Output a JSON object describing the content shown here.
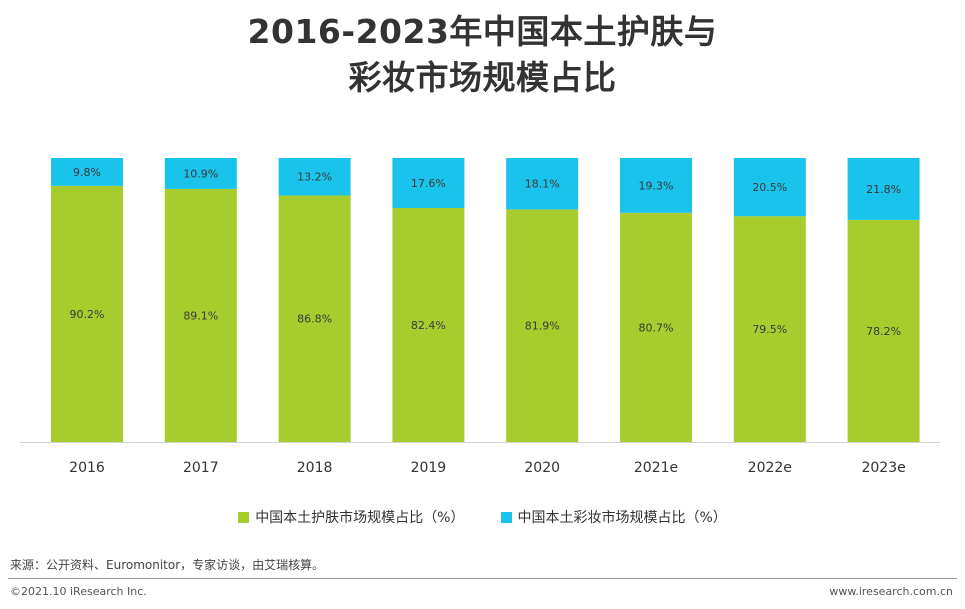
{
  "title_line1": "2016-2023年中国本土护肤与",
  "title_line2": "彩妆市场规模占比",
  "chart_data": {
    "type": "bar",
    "stacked": true,
    "percent_stacked": true,
    "title": "2016-2023年中国本土护肤与彩妆市场规模占比",
    "categories": [
      "2016",
      "2017",
      "2018",
      "2019",
      "2020",
      "2021e",
      "2022e",
      "2023e"
    ],
    "series": [
      {
        "name": "中国本土护肤市场规模占比（%）",
        "color": "#a7cc2e",
        "values": [
          90.2,
          89.1,
          86.8,
          82.4,
          81.9,
          80.7,
          79.5,
          78.2
        ],
        "labels": [
          "90.2%",
          "89.1%",
          "86.8%",
          "82.4%",
          "81.9%",
          "80.7%",
          "79.5%",
          "78.2%"
        ]
      },
      {
        "name": "中国本土彩妆市场规模占比（%）",
        "color": "#19c3ec",
        "values": [
          9.8,
          10.9,
          13.2,
          17.6,
          18.1,
          19.3,
          20.5,
          21.8
        ],
        "labels": [
          "9.8%",
          "10.9%",
          "13.2%",
          "17.6%",
          "18.1%",
          "19.3%",
          "20.5%",
          "21.8%"
        ]
      }
    ],
    "ylim": [
      0,
      100
    ],
    "xlabel": "",
    "ylabel": "",
    "legend_position": "bottom"
  },
  "source": "来源：公开资料、Euromonitor，专家访谈，由艾瑞核算。",
  "copyright": "©2021.10 iResearch Inc.",
  "website": "www.iresearch.com.cn"
}
